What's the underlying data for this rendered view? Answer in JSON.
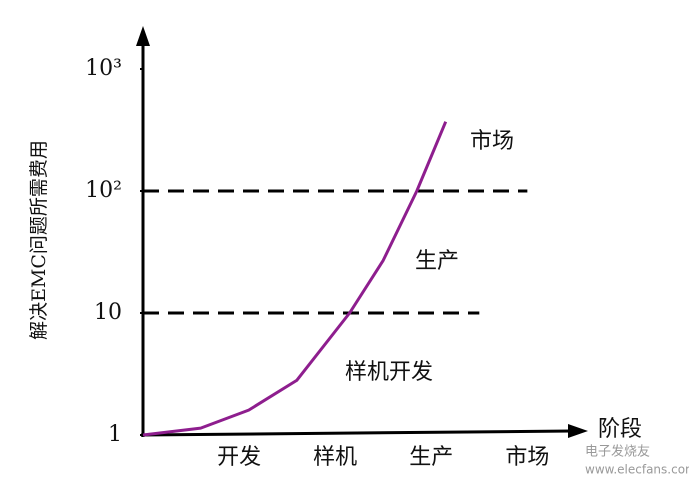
{
  "chart_data": {
    "type": "line",
    "y_label": "解决EMC问题所需费用",
    "x_label": "阶段",
    "log_scale_y": true,
    "ylim": [
      1,
      1900
    ],
    "yticks": [
      1,
      10,
      {
        "value": 100,
        "label": "10²"
      },
      {
        "value": 1000,
        "label": "10³"
      }
    ],
    "xlim": [
      0,
      4.6
    ],
    "xticks": [
      {
        "value": 1,
        "label": "开发"
      },
      {
        "value": 2,
        "label": "样机"
      },
      {
        "value": 3,
        "label": "生产"
      },
      {
        "value": 4,
        "label": "市场"
      }
    ],
    "series": [
      {
        "color": "#8e1e8e",
        "x": [
          0,
          0.6,
          1.1,
          1.6,
          2.15,
          2.5,
          2.85,
          3.15
        ],
        "values": [
          1,
          1.14,
          1.6,
          2.8,
          10,
          27,
          100,
          370
        ]
      }
    ],
    "reference_lines": [
      {
        "y": 10,
        "x": [
          0,
          3.5
        ]
      },
      {
        "y": 100,
        "x": [
          0,
          4
        ]
      }
    ],
    "annotations": [
      "市场",
      "生产",
      "样机开发"
    ],
    "watermark": [
      "电子发烧友",
      "www.elecfans.com"
    ]
  }
}
